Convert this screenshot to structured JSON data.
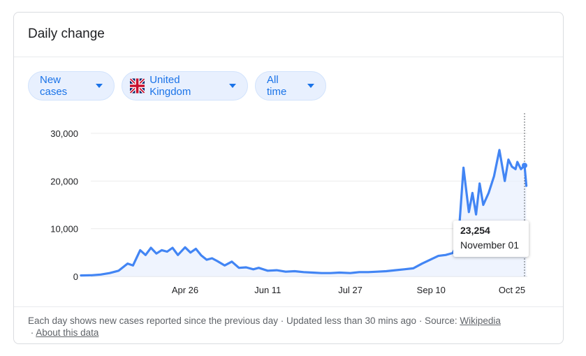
{
  "header": {
    "title": "Daily change"
  },
  "filters": {
    "metric": "New cases",
    "region": "United Kingdom",
    "range": "All time"
  },
  "tooltip": {
    "value": "23,254",
    "date": "November 01"
  },
  "footer": {
    "text": "Each day shows new cases reported since the previous day · Updated less than 30 mins ago · Source:",
    "source_link": "Wikipedia",
    "about_link": "About this data",
    "sep": "·"
  },
  "colors": {
    "line": "#4285f4",
    "fill": "#e8f0fe",
    "chip_text": "#1a73e8"
  },
  "chart_data": {
    "type": "area",
    "x_ticks": [
      "Apr 26",
      "Jun 11",
      "Jul 27",
      "Sep 10",
      "Oct 25"
    ],
    "y_ticks": [
      "0",
      "10,000",
      "20,000",
      "30,000"
    ],
    "ylim": [
      0,
      30000
    ],
    "grid": true,
    "series": [
      {
        "x": [
          "Feb 28",
          "Mar 5",
          "Mar 10",
          "Mar 15",
          "Mar 20",
          "Mar 25",
          "Mar 28",
          "Apr 1",
          "Apr 4",
          "Apr 7",
          "Apr 10",
          "Apr 13",
          "Apr 16",
          "Apr 19",
          "Apr 22",
          "Apr 26",
          "Apr 29",
          "May 2",
          "May 5",
          "May 8",
          "May 11",
          "May 14",
          "May 18",
          "May 22",
          "May 26",
          "May 30",
          "Jun 3",
          "Jun 6",
          "Jun 11",
          "Jun 16",
          "Jun 21",
          "Jun 26",
          "Jul 1",
          "Jul 6",
          "Jul 11",
          "Jul 16",
          "Jul 21",
          "Jul 27",
          "Aug 1",
          "Aug 6",
          "Aug 11",
          "Aug 16",
          "Aug 21",
          "Aug 26",
          "Aug 31",
          "Sep 5",
          "Sep 10",
          "Sep 14",
          "Sep 18",
          "Sep 22",
          "Sep 25",
          "Sep 28",
          "Oct 1",
          "Oct 3",
          "Oct 5",
          "Oct 7",
          "Oct 9",
          "Oct 12",
          "Oct 15",
          "Oct 18",
          "Oct 21",
          "Oct 23",
          "Oct 25",
          "Oct 27",
          "Oct 28",
          "Oct 30",
          "Nov 1",
          "Nov 2"
        ],
        "values": [
          200,
          250,
          400,
          700,
          1200,
          2700,
          2300,
          5500,
          4500,
          6000,
          4800,
          5500,
          5200,
          6000,
          4500,
          6100,
          5000,
          5800,
          4400,
          3500,
          3800,
          3200,
          2300,
          3100,
          1800,
          1900,
          1500,
          1800,
          1200,
          1300,
          1000,
          1100,
          900,
          800,
          700,
          700,
          800,
          700,
          900,
          900,
          1000,
          1100,
          1300,
          1500,
          1700,
          2700,
          3600,
          4300,
          4500,
          4900,
          7000,
          22800,
          13500,
          17500,
          13000,
          19500,
          15000,
          17500,
          21000,
          26500,
          20000,
          24500,
          23000,
          22500,
          24000,
          22500,
          23254,
          19000
        ]
      }
    ]
  }
}
